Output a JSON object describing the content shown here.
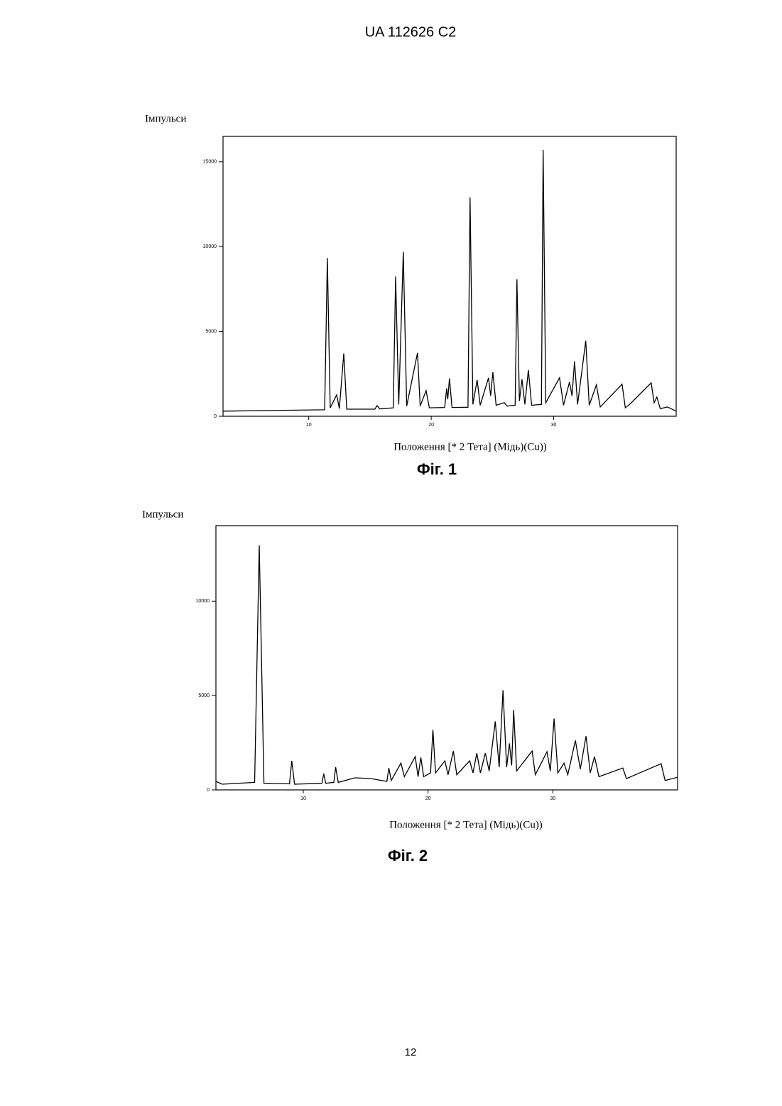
{
  "header": "UA   112626   C2",
  "page_number": "12",
  "chart_data": [
    {
      "type": "line",
      "y_label": "Імпульси",
      "x_label": "Положення [* 2 Тета] (Мідь)(Cu))",
      "caption": "Фіг. 1",
      "color": "#000000",
      "xlim": [
        3,
        40
      ],
      "ylim": [
        0,
        16500
      ],
      "xticks": [
        10,
        20,
        30
      ],
      "yticks": [
        0,
        5000,
        10000,
        15000
      ],
      "x": [
        3,
        11.3,
        11.52,
        11.75,
        12.28,
        12.5,
        12.86,
        13.1,
        15.4,
        15.58,
        15.8,
        16.9,
        17.09,
        17.35,
        17.72,
        18.0,
        18.88,
        19.1,
        19.58,
        19.85,
        21.1,
        21.26,
        21.35,
        21.49,
        21.7,
        23.0,
        23.17,
        23.4,
        23.75,
        24.0,
        24.68,
        24.85,
        25.03,
        25.3,
        25.96,
        26.2,
        26.85,
        27.0,
        27.2,
        27.41,
        27.65,
        27.93,
        28.2,
        29.0,
        29.14,
        29.35,
        30.48,
        30.8,
        31.29,
        31.5,
        31.7,
        31.95,
        32.62,
        32.9,
        33.49,
        33.8,
        35.58,
        35.85,
        36.2,
        37.96,
        38.2,
        38.42,
        38.7,
        39.29,
        40
      ],
      "values": [
        300,
        380,
        9330,
        500,
        1260,
        450,
        3700,
        420,
        420,
        630,
        430,
        500,
        8240,
        700,
        9700,
        600,
        3740,
        600,
        1510,
        500,
        520,
        1640,
        1000,
        2230,
        520,
        530,
        12900,
        700,
        2140,
        650,
        2270,
        1200,
        2600,
        650,
        800,
        600,
        650,
        8070,
        900,
        2180,
        700,
        2730,
        650,
        700,
        15710,
        800,
        2270,
        650,
        2020,
        1200,
        3240,
        700,
        4450,
        650,
        1850,
        550,
        1890,
        500,
        700,
        1970,
        800,
        1130,
        450,
        550,
        300
      ]
    },
    {
      "type": "line",
      "y_label": "Імпульси",
      "x_label": "Положення [* 2 Тета] (Мідь)(Cu))",
      "caption": "Фіг. 2",
      "color": "#000000",
      "xlim": [
        3,
        40
      ],
      "ylim": [
        0,
        14000
      ],
      "xticks": [
        10,
        20,
        30
      ],
      "yticks": [
        0,
        5000,
        10000
      ],
      "x": [
        3,
        3.5,
        6.1,
        6.47,
        6.85,
        8.9,
        9.08,
        9.3,
        11.5,
        11.64,
        11.8,
        12.45,
        12.6,
        12.8,
        14.14,
        15.44,
        16.7,
        16.86,
        17.05,
        17.83,
        18.1,
        18.97,
        19.2,
        19.42,
        19.65,
        20.2,
        20.39,
        20.6,
        21.35,
        21.6,
        22.03,
        22.3,
        23.34,
        23.6,
        23.91,
        24.2,
        24.59,
        24.9,
        25.39,
        25.7,
        26.01,
        26.3,
        26.52,
        26.7,
        26.86,
        27.1,
        28.34,
        28.6,
        29.53,
        29.8,
        30.1,
        30.4,
        30.9,
        31.2,
        31.81,
        32.2,
        32.66,
        33.0,
        33.34,
        33.7,
        35.61,
        35.9,
        38.68,
        39.0,
        40
      ],
      "values": [
        450,
        300,
        400,
        12960,
        350,
        320,
        1540,
        300,
        350,
        860,
        350,
        400,
        1200,
        400,
        640,
        600,
        450,
        1160,
        500,
        1420,
        700,
        1760,
        700,
        1720,
        700,
        900,
        3180,
        900,
        1540,
        800,
        2060,
        800,
        1540,
        900,
        1950,
        900,
        1950,
        1000,
        3630,
        1200,
        5280,
        1200,
        2470,
        1300,
        4230,
        1000,
        2060,
        800,
        2020,
        1000,
        3780,
        900,
        1420,
        800,
        2620,
        1100,
        2850,
        900,
        1760,
        700,
        1160,
        600,
        1390,
        500,
        670
      ]
    }
  ]
}
